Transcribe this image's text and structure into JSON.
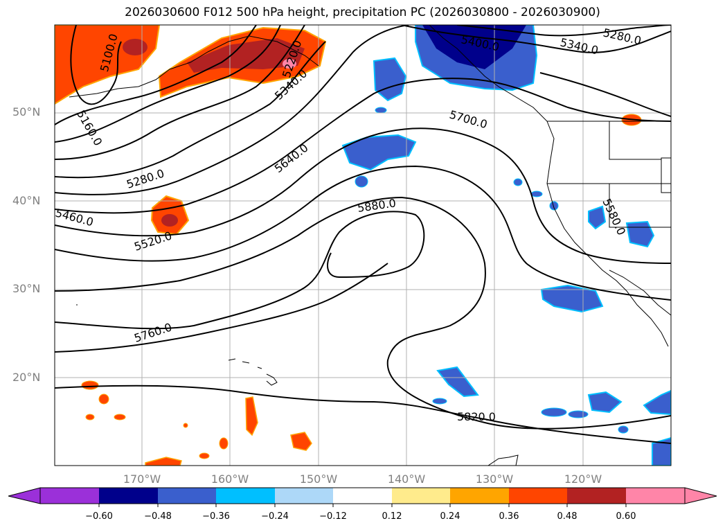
{
  "title": "2026030600 F012 500 hPa height, precipitation PC (2026030800 - 2026030900)",
  "lat_labels": [
    "50°N",
    "40°N",
    "30°N",
    "20°N"
  ],
  "lon_labels": [
    "170°W",
    "160°W",
    "150°W",
    "140°W",
    "130°W",
    "120°W"
  ],
  "contour_labels": [
    "5100.0",
    "5160.0",
    "5220.0",
    "5280.0",
    "5340.0",
    "5400.0",
    "5280.0",
    "5340.0",
    "5700.0",
    "5640.0",
    "5280.0",
    "5880.0",
    "5460.0",
    "5520.0",
    "5580.0",
    "5760.0",
    "5820.0"
  ],
  "colorbar": {
    "ticks": [
      "−0.60",
      "−0.48",
      "−0.36",
      "−0.24",
      "−0.12",
      "0.12",
      "0.24",
      "0.36",
      "0.48",
      "0.60"
    ],
    "colors": [
      "#9b30d9",
      "#00008b",
      "#3a5fcd",
      "#00bfff",
      "#add8f8",
      "#ffffff",
      "#ffeb8c",
      "#ffa500",
      "#ff4500",
      "#b22222",
      "#ff85a8"
    ]
  },
  "colors": {
    "neg_strong": "#00008b",
    "neg_medium": "#3a5fcd",
    "neg_light": "#00bfff",
    "neg_faint": "#add8f8",
    "pos_faint": "#ffeb8c",
    "pos_light": "#ffa500",
    "pos_medium": "#ff4500",
    "pos_strong": "#b22222",
    "pos_extreme": "#ff85a8",
    "grid": "#b0b0b0",
    "axis_label": "#808080"
  }
}
